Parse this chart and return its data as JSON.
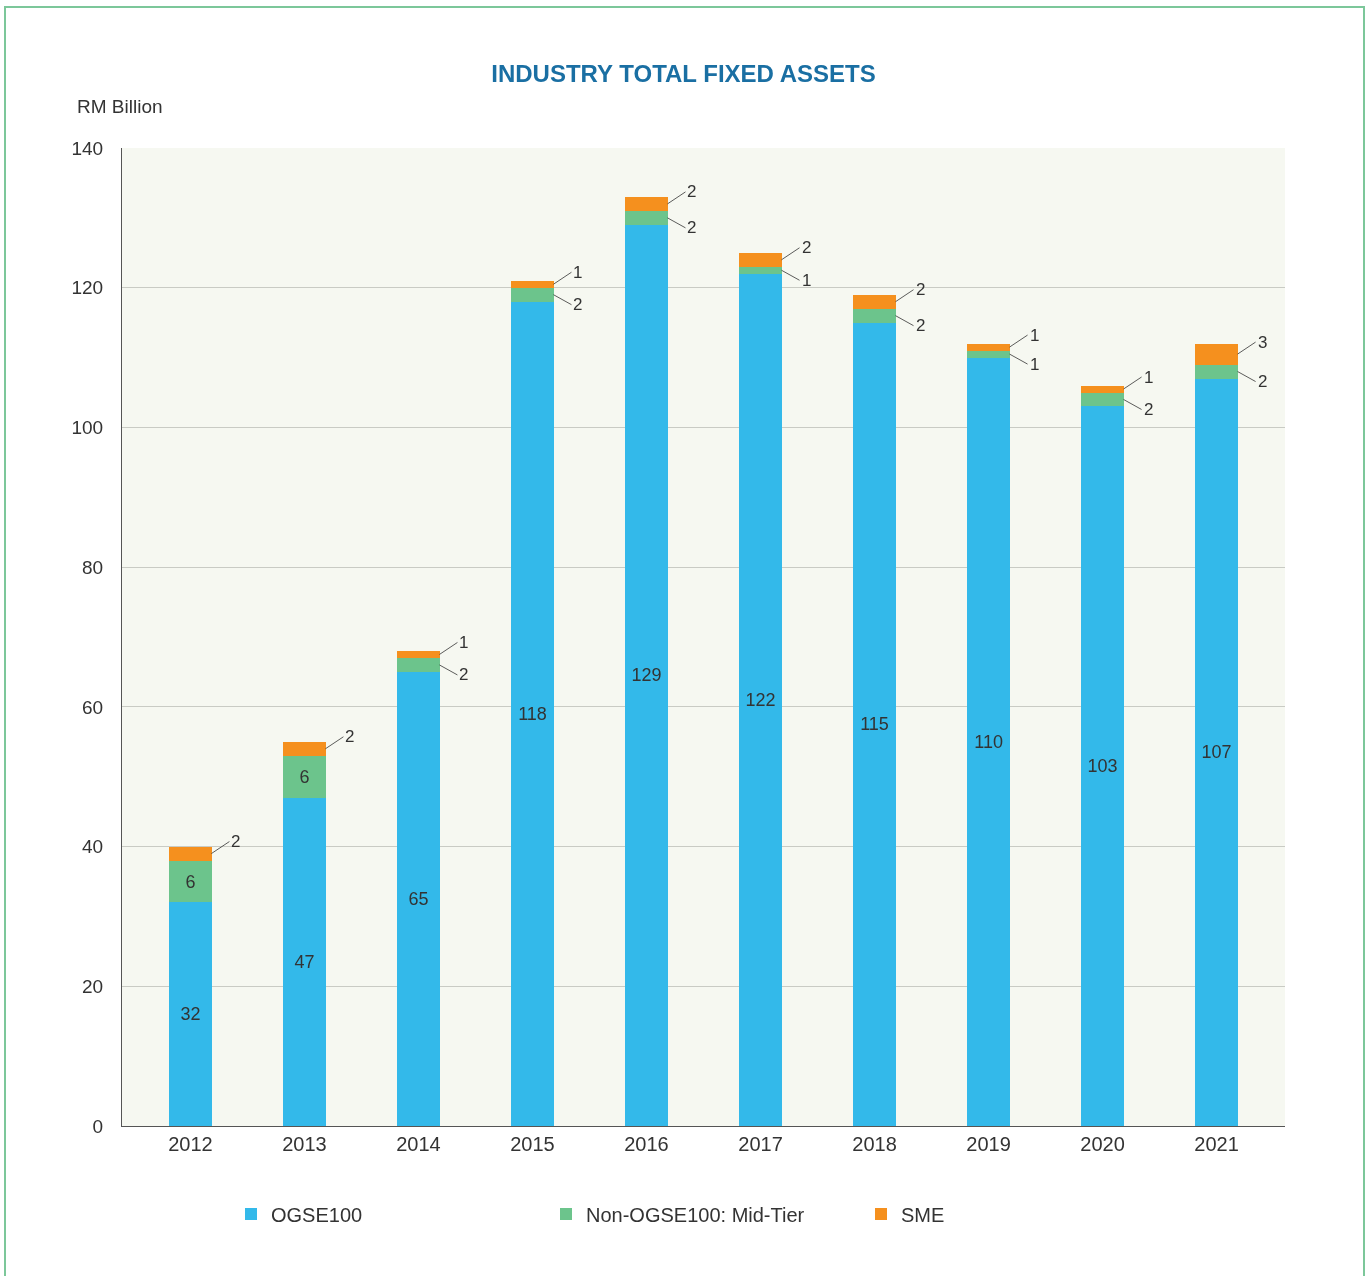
{
  "chart_data": {
    "type": "bar",
    "title": "INDUSTRY TOTAL FIXED ASSETS",
    "ylabel": "RM Billion",
    "categories": [
      "2012",
      "2013",
      "2014",
      "2015",
      "2016",
      "2017",
      "2018",
      "2019",
      "2020",
      "2021"
    ],
    "series": [
      {
        "name": "OGSE100",
        "color": "#33b9ea",
        "values": [
          32,
          47,
          65,
          118,
          129,
          122,
          115,
          110,
          103,
          107
        ]
      },
      {
        "name": "Non-OGSE100: Mid-Tier",
        "color": "#6cc48c",
        "values": [
          6,
          6,
          2,
          2,
          2,
          1,
          2,
          1,
          2,
          2
        ]
      },
      {
        "name": "SME",
        "color": "#f5901e",
        "values": [
          2,
          2,
          1,
          1,
          2,
          2,
          2,
          1,
          1,
          3
        ]
      }
    ],
    "stacked": true,
    "ylim": [
      0,
      140
    ],
    "yticks": [
      0,
      20,
      40,
      60,
      80,
      100,
      120,
      140
    ],
    "grid": "y",
    "legend": "bottom",
    "data_labels": true
  }
}
